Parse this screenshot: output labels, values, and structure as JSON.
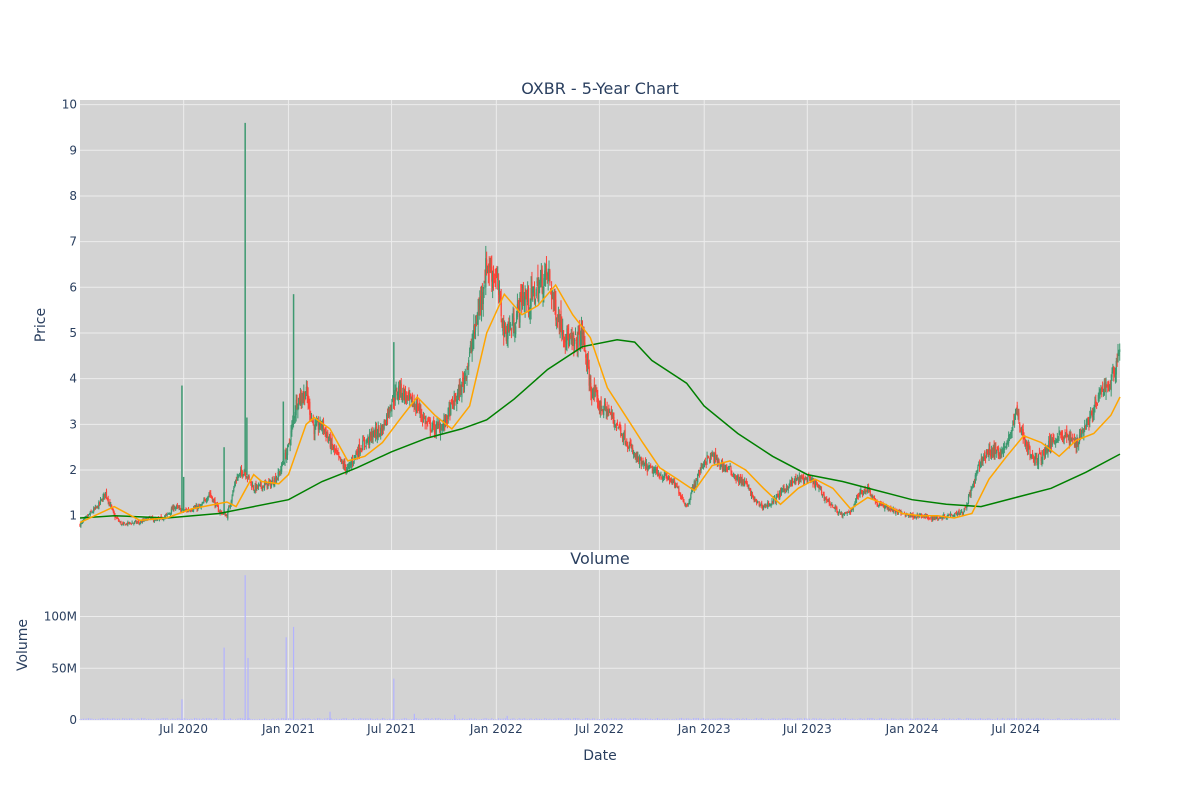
{
  "chart_data": [
    {
      "type": "candlestick",
      "title": "OXBR - 5-Year Chart",
      "ylabel": "Price",
      "ylim": [
        0.25,
        10.1
      ],
      "yticks": [
        1,
        2,
        3,
        4,
        5,
        6,
        7,
        8,
        9,
        10
      ],
      "grid": true,
      "colors": {
        "up": "#3d9970",
        "down": "#ff4136",
        "ma_short": "#ffa500",
        "ma_long": "#008000"
      },
      "close_points": [
        [
          "2020-01-01",
          0.8
        ],
        [
          "2020-01-15",
          1.0
        ],
        [
          "2020-02-01",
          1.2
        ],
        [
          "2020-02-15",
          1.5
        ],
        [
          "2020-03-01",
          1.0
        ],
        [
          "2020-03-15",
          0.8
        ],
        [
          "2020-04-01",
          0.85
        ],
        [
          "2020-04-15",
          0.85
        ],
        [
          "2020-05-01",
          0.95
        ],
        [
          "2020-05-15",
          0.9
        ],
        [
          "2020-06-01",
          1.0
        ],
        [
          "2020-06-15",
          1.2
        ],
        [
          "2020-07-01",
          1.1
        ],
        [
          "2020-07-15",
          1.15
        ],
        [
          "2020-08-01",
          1.2
        ],
        [
          "2020-08-15",
          1.5
        ],
        [
          "2020-09-01",
          1.1
        ],
        [
          "2020-09-15",
          1.0
        ],
        [
          "2020-10-01",
          1.8
        ],
        [
          "2020-10-15",
          2.0
        ],
        [
          "2020-11-01",
          1.6
        ],
        [
          "2020-11-15",
          1.65
        ],
        [
          "2020-12-01",
          1.7
        ],
        [
          "2020-12-15",
          1.9
        ],
        [
          "2021-01-01",
          2.5
        ],
        [
          "2021-01-15",
          3.5
        ],
        [
          "2021-02-01",
          3.7
        ],
        [
          "2021-02-15",
          2.9
        ],
        [
          "2021-03-01",
          3.0
        ],
        [
          "2021-03-15",
          2.6
        ],
        [
          "2021-04-01",
          2.2
        ],
        [
          "2021-04-15",
          2.0
        ],
        [
          "2021-05-01",
          2.4
        ],
        [
          "2021-05-15",
          2.6
        ],
        [
          "2021-06-01",
          2.8
        ],
        [
          "2021-06-15",
          2.9
        ],
        [
          "2021-07-01",
          3.5
        ],
        [
          "2021-07-15",
          3.8
        ],
        [
          "2021-08-01",
          3.5
        ],
        [
          "2021-08-15",
          3.4
        ],
        [
          "2021-09-01",
          3.0
        ],
        [
          "2021-09-15",
          2.9
        ],
        [
          "2021-10-01",
          3.0
        ],
        [
          "2021-10-15",
          3.4
        ],
        [
          "2021-11-01",
          3.8
        ],
        [
          "2021-11-15",
          4.5
        ],
        [
          "2021-12-01",
          5.5
        ],
        [
          "2021-12-15",
          6.5
        ],
        [
          "2022-01-01",
          6.2
        ],
        [
          "2022-01-15",
          5.0
        ],
        [
          "2022-02-01",
          5.2
        ],
        [
          "2022-02-15",
          5.8
        ],
        [
          "2022-03-01",
          5.7
        ],
        [
          "2022-03-15",
          6.0
        ],
        [
          "2022-04-01",
          6.3
        ],
        [
          "2022-04-15",
          5.5
        ],
        [
          "2022-05-01",
          5.0
        ],
        [
          "2022-05-15",
          4.7
        ],
        [
          "2022-06-01",
          5.0
        ],
        [
          "2022-06-15",
          3.8
        ],
        [
          "2022-07-01",
          3.4
        ],
        [
          "2022-07-15",
          3.3
        ],
        [
          "2022-08-01",
          3.0
        ],
        [
          "2022-08-15",
          2.7
        ],
        [
          "2022-09-01",
          2.3
        ],
        [
          "2022-09-15",
          2.1
        ],
        [
          "2022-10-01",
          2.0
        ],
        [
          "2022-10-15",
          1.9
        ],
        [
          "2022-11-01",
          1.8
        ],
        [
          "2022-11-15",
          1.6
        ],
        [
          "2022-12-01",
          1.2
        ],
        [
          "2022-12-15",
          1.7
        ],
        [
          "2023-01-01",
          2.2
        ],
        [
          "2023-01-15",
          2.3
        ],
        [
          "2023-02-01",
          2.1
        ],
        [
          "2023-02-15",
          2.0
        ],
        [
          "2023-03-01",
          1.8
        ],
        [
          "2023-03-15",
          1.7
        ],
        [
          "2023-04-01",
          1.3
        ],
        [
          "2023-04-15",
          1.2
        ],
        [
          "2023-05-01",
          1.3
        ],
        [
          "2023-05-15",
          1.5
        ],
        [
          "2023-06-01",
          1.7
        ],
        [
          "2023-06-15",
          1.8
        ],
        [
          "2023-07-01",
          1.8
        ],
        [
          "2023-07-15",
          1.7
        ],
        [
          "2023-08-01",
          1.4
        ],
        [
          "2023-08-15",
          1.2
        ],
        [
          "2023-09-01",
          1.0
        ],
        [
          "2023-09-15",
          1.1
        ],
        [
          "2023-10-01",
          1.5
        ],
        [
          "2023-10-15",
          1.6
        ],
        [
          "2023-11-01",
          1.25
        ],
        [
          "2023-11-15",
          1.2
        ],
        [
          "2023-12-01",
          1.1
        ],
        [
          "2023-12-15",
          1.05
        ],
        [
          "2024-01-01",
          1.0
        ],
        [
          "2024-01-15",
          1.0
        ],
        [
          "2024-02-01",
          0.95
        ],
        [
          "2024-02-15",
          0.95
        ],
        [
          "2024-03-01",
          1.0
        ],
        [
          "2024-03-15",
          1.05
        ],
        [
          "2024-04-01",
          1.1
        ],
        [
          "2024-04-15",
          1.6
        ],
        [
          "2024-05-01",
          2.2
        ],
        [
          "2024-05-15",
          2.4
        ],
        [
          "2024-06-01",
          2.4
        ],
        [
          "2024-06-15",
          2.5
        ],
        [
          "2024-07-01",
          3.3
        ],
        [
          "2024-07-15",
          2.7
        ],
        [
          "2024-08-01",
          2.2
        ],
        [
          "2024-08-15",
          2.3
        ],
        [
          "2024-09-01",
          2.6
        ],
        [
          "2024-09-15",
          2.8
        ],
        [
          "2024-10-01",
          2.7
        ],
        [
          "2024-10-15",
          2.6
        ],
        [
          "2024-11-01",
          3.0
        ],
        [
          "2024-11-15",
          3.3
        ],
        [
          "2024-12-01",
          3.8
        ],
        [
          "2024-12-15",
          3.9
        ],
        [
          "2024-12-31",
          4.7
        ]
      ],
      "spikes": [
        [
          "2020-06-28",
          3.85
        ],
        [
          "2020-07-01",
          1.85
        ],
        [
          "2020-09-10",
          2.5
        ],
        [
          "2020-10-17",
          9.6
        ],
        [
          "2020-10-20",
          3.15
        ],
        [
          "2020-12-23",
          3.5
        ],
        [
          "2021-01-10",
          5.85
        ],
        [
          "2021-07-05",
          4.8
        ]
      ],
      "ma_short": [
        [
          "2020-01-01",
          0.85
        ],
        [
          "2020-03-01",
          1.2
        ],
        [
          "2020-04-15",
          0.9
        ],
        [
          "2020-06-01",
          0.95
        ],
        [
          "2020-07-15",
          1.15
        ],
        [
          "2020-09-15",
          1.3
        ],
        [
          "2020-10-01",
          1.2
        ],
        [
          "2020-11-01",
          1.9
        ],
        [
          "2020-11-15",
          1.75
        ],
        [
          "2020-12-15",
          1.7
        ],
        [
          "2021-01-01",
          1.9
        ],
        [
          "2021-02-01",
          3.0
        ],
        [
          "2021-02-15",
          3.15
        ],
        [
          "2021-03-15",
          2.9
        ],
        [
          "2021-04-15",
          2.2
        ],
        [
          "2021-05-15",
          2.3
        ],
        [
          "2021-06-15",
          2.6
        ],
        [
          "2021-07-15",
          3.1
        ],
        [
          "2021-08-15",
          3.6
        ],
        [
          "2021-09-15",
          3.2
        ],
        [
          "2021-10-15",
          2.9
        ],
        [
          "2021-11-15",
          3.4
        ],
        [
          "2021-12-15",
          5.0
        ],
        [
          "2022-01-15",
          5.85
        ],
        [
          "2022-02-15",
          5.4
        ],
        [
          "2022-03-15",
          5.6
        ],
        [
          "2022-04-15",
          6.05
        ],
        [
          "2022-05-15",
          5.4
        ],
        [
          "2022-06-15",
          4.9
        ],
        [
          "2022-07-15",
          3.8
        ],
        [
          "2022-08-15",
          3.2
        ],
        [
          "2022-09-15",
          2.6
        ],
        [
          "2022-10-15",
          2.05
        ],
        [
          "2022-11-15",
          1.8
        ],
        [
          "2022-12-15",
          1.55
        ],
        [
          "2023-01-15",
          2.1
        ],
        [
          "2023-02-15",
          2.2
        ],
        [
          "2023-03-15",
          2.0
        ],
        [
          "2023-04-15",
          1.6
        ],
        [
          "2023-05-15",
          1.25
        ],
        [
          "2023-06-15",
          1.6
        ],
        [
          "2023-07-15",
          1.8
        ],
        [
          "2023-08-15",
          1.6
        ],
        [
          "2023-09-15",
          1.15
        ],
        [
          "2023-10-15",
          1.4
        ],
        [
          "2023-11-15",
          1.25
        ],
        [
          "2023-12-15",
          1.05
        ],
        [
          "2024-01-15",
          1.0
        ],
        [
          "2024-02-15",
          1.0
        ],
        [
          "2024-03-15",
          0.95
        ],
        [
          "2024-04-15",
          1.05
        ],
        [
          "2024-05-15",
          1.8
        ],
        [
          "2024-06-15",
          2.3
        ],
        [
          "2024-07-15",
          2.75
        ],
        [
          "2024-08-15",
          2.6
        ],
        [
          "2024-09-15",
          2.3
        ],
        [
          "2024-10-15",
          2.65
        ],
        [
          "2024-11-15",
          2.8
        ],
        [
          "2024-12-15",
          3.2
        ],
        [
          "2024-12-31",
          3.6
        ]
      ],
      "ma_long": [
        [
          "2020-01-01",
          0.95
        ],
        [
          "2020-03-01",
          1.0
        ],
        [
          "2020-06-01",
          0.95
        ],
        [
          "2020-09-01",
          1.05
        ],
        [
          "2020-11-01",
          1.2
        ],
        [
          "2021-01-01",
          1.35
        ],
        [
          "2021-03-01",
          1.75
        ],
        [
          "2021-05-01",
          2.05
        ],
        [
          "2021-07-01",
          2.4
        ],
        [
          "2021-09-01",
          2.7
        ],
        [
          "2021-11-01",
          2.9
        ],
        [
          "2021-12-15",
          3.1
        ],
        [
          "2022-02-01",
          3.55
        ],
        [
          "2022-04-01",
          4.2
        ],
        [
          "2022-06-01",
          4.7
        ],
        [
          "2022-08-01",
          4.85
        ],
        [
          "2022-09-01",
          4.8
        ],
        [
          "2022-10-01",
          4.4
        ],
        [
          "2022-12-01",
          3.9
        ],
        [
          "2023-01-01",
          3.4
        ],
        [
          "2023-03-01",
          2.8
        ],
        [
          "2023-05-01",
          2.3
        ],
        [
          "2023-07-01",
          1.9
        ],
        [
          "2023-09-01",
          1.75
        ],
        [
          "2023-11-01",
          1.55
        ],
        [
          "2024-01-01",
          1.35
        ],
        [
          "2024-03-01",
          1.25
        ],
        [
          "2024-05-01",
          1.2
        ],
        [
          "2024-07-01",
          1.4
        ],
        [
          "2024-09-01",
          1.6
        ],
        [
          "2024-11-01",
          1.95
        ],
        [
          "2024-12-31",
          2.35
        ]
      ]
    },
    {
      "type": "bar",
      "title": "Volume",
      "xlabel": "Date",
      "ylabel": "Volume",
      "ylim": [
        0,
        145000000
      ],
      "yticks": [
        0,
        50000000,
        100000000
      ],
      "ytick_labels": [
        "0",
        "50M",
        "100M"
      ],
      "grid": true,
      "color": "#b3b3ff",
      "spikes": [
        [
          "2020-06-28",
          20000000
        ],
        [
          "2020-09-10",
          70000000
        ],
        [
          "2020-10-17",
          140000000
        ],
        [
          "2020-10-22",
          60000000
        ],
        [
          "2020-12-28",
          80000000
        ],
        [
          "2021-01-10",
          90000000
        ],
        [
          "2021-07-05",
          40000000
        ],
        [
          "2021-03-15",
          8000000
        ],
        [
          "2021-08-10",
          6000000
        ],
        [
          "2021-10-20",
          5000000
        ],
        [
          "2022-01-20",
          4000000
        ]
      ],
      "x_ticks": [
        "2020-07-01",
        "2021-01-01",
        "2021-07-01",
        "2022-01-01",
        "2022-07-01",
        "2023-01-01",
        "2023-07-01",
        "2024-01-01",
        "2024-07-01"
      ],
      "x_tick_labels": [
        "Jul 2020",
        "Jan 2021",
        "Jul 2021",
        "Jan 2022",
        "Jul 2022",
        "Jan 2023",
        "Jul 2023",
        "Jan 2024",
        "Jul 2024"
      ],
      "x_range": [
        "2020-01-01",
        "2024-12-31"
      ]
    }
  ]
}
